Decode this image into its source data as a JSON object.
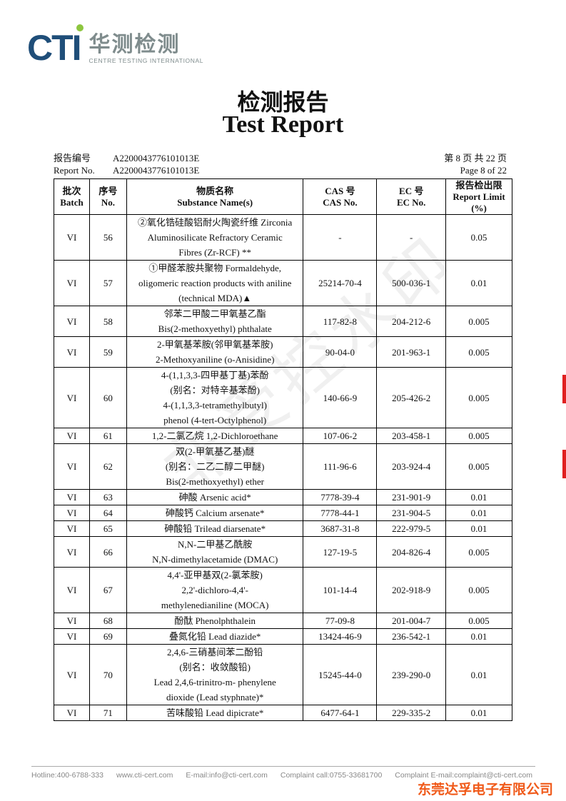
{
  "logo": {
    "brand": "CTI",
    "cn": "华测检测",
    "en": "CENTRE TESTING INTERNATIONAL"
  },
  "title": {
    "cn": "检测报告",
    "en": "Test Report"
  },
  "report_no": {
    "label_cn": "报告编号",
    "label_en": "Report No.",
    "value": "A2200043776101013E"
  },
  "page": {
    "cn": "第 8 页  共 22 页",
    "en": "Page 8 of 22"
  },
  "watermark": "非受控水印",
  "table": {
    "headers": [
      {
        "cn": "批次",
        "en": "Batch"
      },
      {
        "cn": "序号",
        "en": "No."
      },
      {
        "cn": "物质名称",
        "en": "Substance Name(s)"
      },
      {
        "cn": "CAS 号",
        "en": "CAS No."
      },
      {
        "cn": "EC 号",
        "en": "EC No."
      },
      {
        "cn": "报告检出限",
        "en": "Report Limit (%)"
      }
    ],
    "rows": [
      {
        "batch": "VI",
        "no": "56",
        "name": [
          "②氧化锆硅酸铝耐火陶瓷纤维 Zirconia",
          "Aluminosilicate Refractory Ceramic",
          "Fibres (Zr-RCF) **"
        ],
        "cas": "-",
        "ec": "-",
        "limit": "0.05"
      },
      {
        "batch": "VI",
        "no": "57",
        "name": [
          "①甲醛苯胺共聚物 Formaldehyde,",
          "oligomeric reaction products with aniline",
          "(technical MDA)▲"
        ],
        "cas": "25214-70-4",
        "ec": "500-036-1",
        "limit": "0.01"
      },
      {
        "batch": "VI",
        "no": "58",
        "name": [
          "邻苯二甲酸二甲氧基乙酯",
          "Bis(2-methoxyethyl) phthalate"
        ],
        "cas": "117-82-8",
        "ec": "204-212-6",
        "limit": "0.005"
      },
      {
        "batch": "VI",
        "no": "59",
        "name": [
          "2-甲氧基苯胺(邻甲氧基苯胺)",
          "2-Methoxyaniline (o-Anisidine)"
        ],
        "cas": "90-04-0",
        "ec": "201-963-1",
        "limit": "0.005"
      },
      {
        "batch": "VI",
        "no": "60",
        "name": [
          "4-(1,1,3,3-四甲基丁基)苯酚",
          "(别名：对特辛基苯酚)",
          "4-(1,1,3,3-tetramethylbutyl)",
          "phenol (4-tert-Octylphenol)"
        ],
        "cas": "140-66-9",
        "ec": "205-426-2",
        "limit": "0.005"
      },
      {
        "batch": "VI",
        "no": "61",
        "name": [
          "1,2-二氯乙烷 1,2-Dichloroethane"
        ],
        "cas": "107-06-2",
        "ec": "203-458-1",
        "limit": "0.005"
      },
      {
        "batch": "VI",
        "no": "62",
        "name": [
          "双(2-甲氧基乙基)醚",
          "(别名：二乙二醇二甲醚)",
          "Bis(2-methoxyethyl) ether"
        ],
        "cas": "111-96-6",
        "ec": "203-924-4",
        "limit": "0.005"
      },
      {
        "batch": "VI",
        "no": "63",
        "name": [
          "砷酸 Arsenic acid*"
        ],
        "cas": "7778-39-4",
        "ec": "231-901-9",
        "limit": "0.01"
      },
      {
        "batch": "VI",
        "no": "64",
        "name": [
          "砷酸钙 Calcium arsenate*"
        ],
        "cas": "7778-44-1",
        "ec": "231-904-5",
        "limit": "0.01"
      },
      {
        "batch": "VI",
        "no": "65",
        "name": [
          "砷酸铅 Trilead diarsenate*"
        ],
        "cas": "3687-31-8",
        "ec": "222-979-5",
        "limit": "0.01"
      },
      {
        "batch": "VI",
        "no": "66",
        "name": [
          "N,N-二甲基乙酰胺",
          "N,N-dimethylacetamide (DMAC)"
        ],
        "cas": "127-19-5",
        "ec": "204-826-4",
        "limit": "0.005"
      },
      {
        "batch": "VI",
        "no": "67",
        "name": [
          "4,4'-亚甲基双(2-氯苯胺)",
          "2,2'-dichloro-4,4'-",
          "methylenedianiline (MOCA)"
        ],
        "cas": "101-14-4",
        "ec": "202-918-9",
        "limit": "0.005"
      },
      {
        "batch": "VI",
        "no": "68",
        "name": [
          "酚酞 Phenolphthalein"
        ],
        "cas": "77-09-8",
        "ec": "201-004-7",
        "limit": "0.005"
      },
      {
        "batch": "VI",
        "no": "69",
        "name": [
          "叠氮化铅 Lead diazide*"
        ],
        "cas": "13424-46-9",
        "ec": "236-542-1",
        "limit": "0.01"
      },
      {
        "batch": "VI",
        "no": "70",
        "name": [
          "2,4,6-三硝基间苯二酚铅",
          "(别名：收敛酸铅)",
          "Lead 2,4,6-trinitro-m-   phenylene",
          "dioxide (Lead styphnate)*"
        ],
        "cas": "15245-44-0",
        "ec": "239-290-0",
        "limit": "0.01"
      },
      {
        "batch": "VI",
        "no": "71",
        "name": [
          "苦味酸铅 Lead dipicrate*"
        ],
        "cas": "6477-64-1",
        "ec": "229-335-2",
        "limit": "0.01"
      }
    ]
  },
  "footer": {
    "hotline": "Hotline:400-6788-333",
    "website": "www.cti-cert.com",
    "email": "E-mail:info@cti-cert.com",
    "complaint_call": "Complaint call:0755-33681700",
    "complaint_email": "Complaint E-mail:complaint@cti-cert.com"
  },
  "company": "东莞达孚电子有限公司",
  "colors": {
    "logo_blue": "#1f4e79",
    "logo_green": "#8dc63f",
    "company_orange": "#f05a1a"
  }
}
